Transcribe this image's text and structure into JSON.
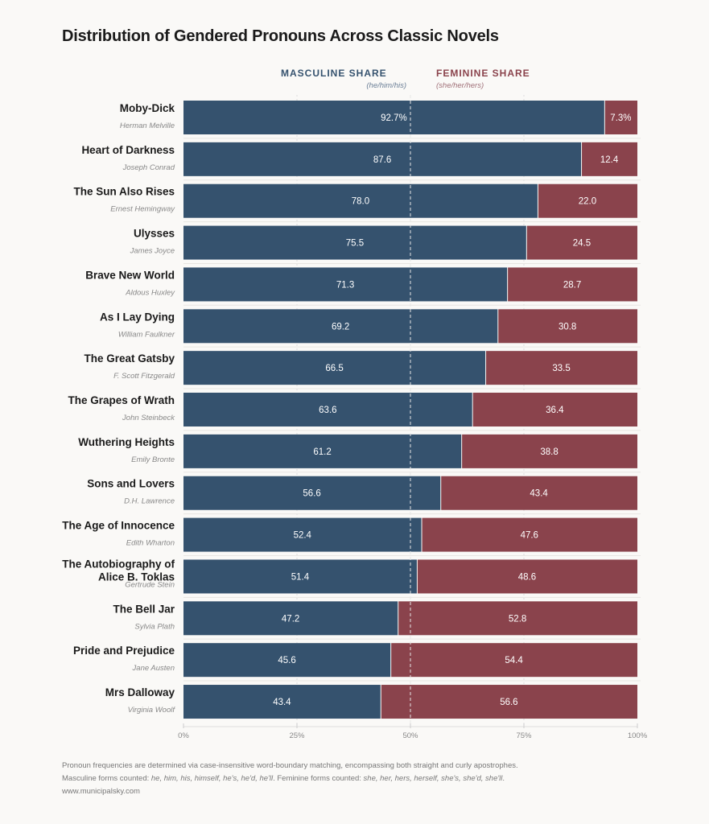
{
  "chart_data": {
    "type": "bar",
    "stacked": true,
    "orientation": "horizontal",
    "title": "Distribution of Gendered Pronouns Across Classic Novels",
    "series": [
      {
        "name": "MASCULINE SHARE",
        "subtitle": "(he/him/his)",
        "color": "#35526e"
      },
      {
        "name": "FEMININE SHARE",
        "subtitle": "(she/her/hers)",
        "color": "#8a434c"
      }
    ],
    "categories": [
      {
        "title": "Moby-Dick",
        "author": "Herman Melville",
        "masculine": 92.7,
        "feminine": 7.3,
        "m_label": "92.7%",
        "f_label": "7.3%"
      },
      {
        "title": "Heart of Darkness",
        "author": "Joseph Conrad",
        "masculine": 87.6,
        "feminine": 12.4,
        "m_label": "87.6",
        "f_label": "12.4"
      },
      {
        "title": "The Sun Also Rises",
        "author": "Ernest Hemingway",
        "masculine": 78.0,
        "feminine": 22.0,
        "m_label": "78.0",
        "f_label": "22.0"
      },
      {
        "title": "Ulysses",
        "author": "James Joyce",
        "masculine": 75.5,
        "feminine": 24.5,
        "m_label": "75.5",
        "f_label": "24.5"
      },
      {
        "title": "Brave New World",
        "author": "Aldous Huxley",
        "masculine": 71.3,
        "feminine": 28.7,
        "m_label": "71.3",
        "f_label": "28.7"
      },
      {
        "title": "As I Lay Dying",
        "author": "William Faulkner",
        "masculine": 69.2,
        "feminine": 30.8,
        "m_label": "69.2",
        "f_label": "30.8"
      },
      {
        "title": "The Great Gatsby",
        "author": "F. Scott Fitzgerald",
        "masculine": 66.5,
        "feminine": 33.5,
        "m_label": "66.5",
        "f_label": "33.5"
      },
      {
        "title": "The Grapes of Wrath",
        "author": "John Steinbeck",
        "masculine": 63.6,
        "feminine": 36.4,
        "m_label": "63.6",
        "f_label": "36.4"
      },
      {
        "title": "Wuthering Heights",
        "author": "Emily Bronte",
        "masculine": 61.2,
        "feminine": 38.8,
        "m_label": "61.2",
        "f_label": "38.8"
      },
      {
        "title": "Sons and Lovers",
        "author": "D.H. Lawrence",
        "masculine": 56.6,
        "feminine": 43.4,
        "m_label": "56.6",
        "f_label": "43.4"
      },
      {
        "title": "The Age of Innocence",
        "author": "Edith Wharton",
        "masculine": 52.4,
        "feminine": 47.6,
        "m_label": "52.4",
        "f_label": "47.6"
      },
      {
        "title": "The Autobiography of Alice B. Toklas",
        "author": "Gertrude Stein",
        "masculine": 51.4,
        "feminine": 48.6,
        "m_label": "51.4",
        "f_label": "48.6"
      },
      {
        "title": "The Bell Jar",
        "author": "Sylvia Plath",
        "masculine": 47.2,
        "feminine": 52.8,
        "m_label": "47.2",
        "f_label": "52.8"
      },
      {
        "title": "Pride and Prejudice",
        "author": "Jane Austen",
        "masculine": 45.6,
        "feminine": 54.4,
        "m_label": "45.6",
        "f_label": "54.4"
      },
      {
        "title": "Mrs Dalloway",
        "author": "Virginia Woolf",
        "masculine": 43.4,
        "feminine": 56.6,
        "m_label": "43.4",
        "f_label": "56.6"
      }
    ],
    "xlim": [
      0,
      100
    ],
    "xticks": [
      "0%",
      "25%",
      "50%",
      "75%",
      "100%"
    ],
    "grid": true
  },
  "footer": {
    "line1": "Pronoun frequencies are determined via case-insensitive word-boundary matching, encompassing both straight and curly apostrophes.",
    "masc_prefix": "Masculine forms counted: ",
    "masc_forms": "he, him, his, himself, he's, he'd, he'll",
    "fem_prefix": ". Feminine forms counted: ",
    "fem_forms": "she, her, hers, herself, she's, she'd, she'll",
    "suffix": ".",
    "url": "www.municipalsky.com"
  }
}
